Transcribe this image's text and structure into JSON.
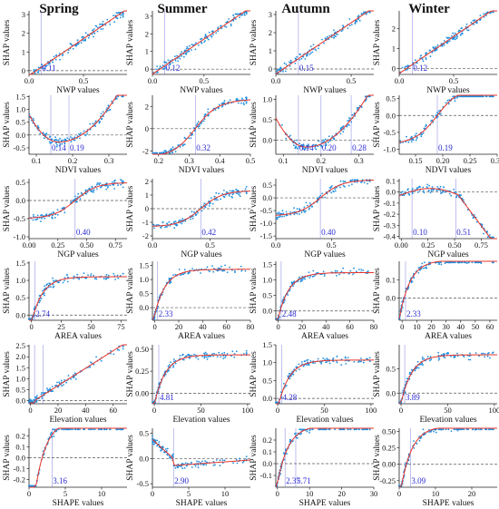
{
  "seasons": [
    "Spring",
    "Summer",
    "Autumn",
    "Winter"
  ],
  "colors": {
    "points": "#1f8fe0",
    "fit_line": "#e8332a",
    "threshold": "#4a4ad6",
    "zero_line": "#555555",
    "threshold_label": "#2a2ad0"
  },
  "chart_data": [
    {
      "type": "scatter",
      "panel": "Spring NWP",
      "xlabel": "NWP values",
      "ylabel": "SHAP values",
      "xlim": [
        0,
        0.9
      ],
      "ylim": [
        -0.2,
        3.2
      ],
      "xticks": [
        "0.0",
        "0.5"
      ],
      "yticks": [
        "0",
        "1",
        "2",
        "3"
      ],
      "thresholds": [
        0.11
      ],
      "threshold_labels": [
        "0.11"
      ],
      "trend": "linear"
    },
    {
      "type": "scatter",
      "panel": "Summer NWP",
      "xlabel": "NWP values",
      "ylabel": "SHAP values",
      "xlim": [
        0,
        0.95
      ],
      "ylim": [
        -0.3,
        3.3
      ],
      "xticks": [
        "0.0",
        "0.5"
      ],
      "yticks": [
        "0",
        "1",
        "2",
        "3"
      ],
      "thresholds": [
        0.12
      ],
      "threshold_labels": [
        "0.12"
      ],
      "trend": "linear"
    },
    {
      "type": "scatter",
      "panel": "Autumn NWP",
      "xlabel": "NWP values",
      "ylabel": "SHAP values",
      "xlim": [
        0,
        0.65
      ],
      "ylim": [
        -0.3,
        3.2
      ],
      "xticks": [
        "0.0",
        "0.5"
      ],
      "yticks": [
        "0",
        "1",
        "2",
        "3"
      ],
      "thresholds": [
        0.15
      ],
      "threshold_labels": [
        "0.15"
      ],
      "trend": "linear"
    },
    {
      "type": "scatter",
      "panel": "Winter NWP",
      "xlabel": "NWP values",
      "ylabel": "SHAP values",
      "xlim": [
        0,
        0.9
      ],
      "ylim": [
        -0.3,
        2.9
      ],
      "xticks": [
        "0.0",
        "0.5"
      ],
      "yticks": [
        "0",
        "1",
        "2"
      ],
      "thresholds": [
        0.12
      ],
      "threshold_labels": [
        "0.12"
      ],
      "trend": "linear"
    },
    {
      "type": "scatter",
      "panel": "Spring NDVI",
      "xlabel": "NDVI values",
      "ylabel": "SHAP values",
      "xlim": [
        0.08,
        0.35
      ],
      "ylim": [
        -0.75,
        1.55
      ],
      "xticks": [
        "0.1",
        "0.2",
        "0.3"
      ],
      "yticks": [
        "-0.5",
        "0.0",
        "0.5",
        "1.0",
        "1.5"
      ],
      "thresholds": [
        0.14,
        0.19
      ],
      "threshold_labels": [
        "0.14",
        "0.19"
      ],
      "trend": "u-shape"
    },
    {
      "type": "scatter",
      "panel": "Summer NDVI",
      "xlabel": "NDVI values",
      "ylabel": "SHAP values",
      "xlim": [
        0.18,
        0.5
      ],
      "ylim": [
        -2.3,
        3.0
      ],
      "xticks": [
        "0.2",
        "0.3",
        "0.4",
        "0.5"
      ],
      "yticks": [
        "-2",
        "0",
        "2"
      ],
      "thresholds": [
        0.32
      ],
      "threshold_labels": [
        "0.32"
      ],
      "trend": "s-curve"
    },
    {
      "type": "scatter",
      "panel": "Autumn NDVI",
      "xlabel": "NDVI values",
      "ylabel": "SHAP values",
      "xlim": [
        0.08,
        0.34
      ],
      "ylim": [
        -0.35,
        1.1
      ],
      "xticks": [
        "0.1",
        "0.2",
        "0.3"
      ],
      "yticks": [
        "0.0",
        "0.5",
        "1.0"
      ],
      "thresholds": [
        0.14,
        0.2,
        0.28
      ],
      "threshold_labels": [
        "0.14",
        "0.20",
        "0.28"
      ],
      "trend": "u-shape"
    },
    {
      "type": "scatter",
      "panel": "Winter NDVI",
      "xlabel": "NDVI values",
      "ylabel": "SHAP values",
      "xlim": [
        0.12,
        0.3
      ],
      "ylim": [
        -1.15,
        0.6
      ],
      "xticks": [
        "0.15",
        "0.20",
        "0.25",
        "0.30"
      ],
      "yticks": [
        "-1.0",
        "-0.5",
        "0.0",
        "0.5"
      ],
      "thresholds": [
        0.19
      ],
      "threshold_labels": [
        "0.19"
      ],
      "trend": "s-curve"
    },
    {
      "type": "scatter",
      "panel": "Spring NGP",
      "xlabel": "NGP values",
      "ylabel": "SHAP values",
      "xlim": [
        0,
        0.85
      ],
      "ylim": [
        -1.05,
        0.6
      ],
      "xticks": [
        "0.00",
        "0.25",
        "0.50",
        "0.75"
      ],
      "yticks": [
        "-1.0",
        "-0.5",
        "0.0",
        "0.5"
      ],
      "thresholds": [
        0.4
      ],
      "threshold_labels": [
        "0.40"
      ],
      "trend": "sigmoid"
    },
    {
      "type": "scatter",
      "panel": "Summer NGP",
      "xlabel": "NGP values",
      "ylabel": "SHAP values",
      "xlim": [
        0,
        0.85
      ],
      "ylim": [
        -2.2,
        2.2
      ],
      "xticks": [
        "0.0",
        "0.5"
      ],
      "yticks": [
        "-2",
        "-1",
        "0",
        "1",
        "2"
      ],
      "thresholds": [
        0.42
      ],
      "threshold_labels": [
        "0.42"
      ],
      "trend": "sigmoid"
    },
    {
      "type": "scatter",
      "panel": "Autumn NGP",
      "xlabel": "NGP values",
      "ylabel": "SHAP values",
      "xlim": [
        0,
        0.88
      ],
      "ylim": [
        -1.6,
        0.75
      ],
      "xticks": [
        "0.0",
        "0.5"
      ],
      "yticks": [
        "-1.5",
        "-1.0",
        "-0.5",
        "0.0",
        "0.5"
      ],
      "thresholds": [
        0.4
      ],
      "threshold_labels": [
        "0.40"
      ],
      "trend": "sigmoid"
    },
    {
      "type": "scatter",
      "panel": "Winter NGP",
      "xlabel": "NGP values",
      "ylabel": "SHAP values",
      "xlim": [
        -0.02,
        0.9
      ],
      "ylim": [
        -0.42,
        0.12
      ],
      "xticks": [
        "0.00",
        "0.25",
        "0.50",
        "0.75"
      ],
      "yticks": [
        "-0.4",
        "-0.3",
        "-0.2",
        "-0.1",
        "0.0",
        "0.1"
      ],
      "thresholds": [
        0.1,
        0.51
      ],
      "threshold_labels": [
        "0.10",
        "0.51"
      ],
      "trend": "arch"
    },
    {
      "type": "scatter",
      "panel": "Spring AREA",
      "xlabel": "AREA values",
      "ylabel": "SHAP values",
      "xlim": [
        -2,
        80
      ],
      "ylim": [
        -0.15,
        1.55
      ],
      "xticks": [
        "0",
        "25",
        "50",
        "75"
      ],
      "yticks": [
        "0.0",
        "0.5",
        "1.0",
        "1.5"
      ],
      "thresholds": [
        2.74
      ],
      "threshold_labels": [
        "2.74"
      ],
      "trend": "log"
    },
    {
      "type": "scatter",
      "panel": "Summer AREA",
      "xlabel": "AREA values",
      "ylabel": "SHAP values",
      "xlim": [
        -2,
        80
      ],
      "ylim": [
        -0.45,
        1.65
      ],
      "xticks": [
        "0",
        "20",
        "40",
        "60",
        "80"
      ],
      "yticks": [
        "0.0",
        "0.5",
        "1.0",
        "1.5"
      ],
      "thresholds": [
        2.33
      ],
      "threshold_labels": [
        "2.33"
      ],
      "trend": "log"
    },
    {
      "type": "scatter",
      "panel": "Autumn AREA",
      "xlabel": "AREA values",
      "ylabel": "SHAP values",
      "xlim": [
        -2,
        80
      ],
      "ylim": [
        -0.3,
        1.6
      ],
      "xticks": [
        "0",
        "20",
        "40",
        "60",
        "80"
      ],
      "yticks": [
        "0.0",
        "0.5",
        "1.0",
        "1.5"
      ],
      "thresholds": [
        2.48
      ],
      "threshold_labels": [
        "2.48"
      ],
      "trend": "log"
    },
    {
      "type": "scatter",
      "panel": "Winter AREA",
      "xlabel": "AREA values",
      "ylabel": "SHAP values",
      "xlim": [
        -2,
        65
      ],
      "ylim": [
        -0.12,
        0.2
      ],
      "xticks": [
        "0",
        "10",
        "20",
        "30",
        "40",
        "50",
        "60"
      ],
      "yticks": [
        "0.0",
        "0.1"
      ],
      "thresholds": [
        2.33
      ],
      "threshold_labels": [
        "2.33"
      ],
      "trend": "log"
    },
    {
      "type": "scatter",
      "panel": "Spring Elevation",
      "xlabel": "Elevation values",
      "ylabel": "SHAP values",
      "xlim": [
        -1,
        70
      ],
      "ylim": [
        -0.15,
        2.55
      ],
      "xticks": [
        "0",
        "20",
        "40",
        "60"
      ],
      "yticks": [
        "0.0",
        "0.5",
        "1.0",
        "1.5",
        "2.0",
        "2.5"
      ],
      "thresholds": [
        3.0,
        9.0
      ],
      "threshold_labels": [],
      "trend": "linear-kink"
    },
    {
      "type": "scatter",
      "panel": "Summer Elevation",
      "xlabel": "Elevation values",
      "ylabel": "SHAP values",
      "xlim": [
        -2,
        103
      ],
      "ylim": [
        -0.12,
        0.55
      ],
      "xticks": [
        "0",
        "50",
        "100"
      ],
      "yticks": [
        "0.00",
        "0.25",
        "0.50"
      ],
      "thresholds": [
        4.81
      ],
      "threshold_labels": [
        "4.81"
      ],
      "trend": "log"
    },
    {
      "type": "scatter",
      "panel": "Autumn Elevation",
      "xlabel": "Elevation values",
      "ylabel": "SHAP values",
      "xlim": [
        -2,
        103
      ],
      "ylim": [
        -0.15,
        1.5
      ],
      "xticks": [
        "0",
        "50",
        "100"
      ],
      "yticks": [
        "0.0",
        "0.5",
        "1.0",
        "1.5"
      ],
      "thresholds": [
        4.28
      ],
      "threshold_labels": [
        "4.28"
      ],
      "trend": "log"
    },
    {
      "type": "scatter",
      "panel": "Winter Elevation",
      "xlabel": "Elevation values",
      "ylabel": "SHAP values",
      "xlim": [
        -2,
        103
      ],
      "ylim": [
        -0.22,
        1.0
      ],
      "xticks": [
        "0",
        "50",
        "100"
      ],
      "yticks": [
        "0.0",
        "0.5"
      ],
      "thresholds": [
        3.89
      ],
      "threshold_labels": [
        "3.89"
      ],
      "trend": "log"
    },
    {
      "type": "scatter",
      "panel": "Spring SHAPE",
      "xlabel": "SHAPE values",
      "ylabel": "SHAP values",
      "xlim": [
        0,
        13.5
      ],
      "ylim": [
        -0.27,
        0.27
      ],
      "xticks": [
        "0",
        "5",
        "10"
      ],
      "yticks": [
        "-0.2",
        "-0.1",
        "0.0",
        "0.1",
        "0.2"
      ],
      "thresholds": [
        3.16
      ],
      "threshold_labels": [
        "3.16"
      ],
      "trend": "log"
    },
    {
      "type": "scatter",
      "panel": "Summer SHAPE",
      "xlabel": "SHAPE values",
      "ylabel": "SHAP values",
      "xlim": [
        0,
        13.5
      ],
      "ylim": [
        -0.57,
        0.6
      ],
      "xticks": [
        "0",
        "5",
        "10"
      ],
      "yticks": [
        "-0.5",
        "0.0",
        "0.5"
      ],
      "thresholds": [
        2.9
      ],
      "threshold_labels": [
        "2.90"
      ],
      "trend": "dip"
    },
    {
      "type": "scatter",
      "panel": "Autumn SHAPE",
      "xlabel": "SHAPE values",
      "ylabel": "SHAP values",
      "xlim": [
        -0.5,
        30
      ],
      "ylim": [
        -0.2,
        0.3
      ],
      "xticks": [
        "0",
        "10",
        "20",
        "30"
      ],
      "yticks": [
        "-0.1",
        "0.0",
        "0.1",
        "0.2"
      ],
      "thresholds": [
        2.37,
        5.71
      ],
      "threshold_labels": [
        "2.37",
        "5.71"
      ],
      "trend": "log"
    },
    {
      "type": "scatter",
      "panel": "Winter SHAPE",
      "xlabel": "SHAPE values",
      "ylabel": "SHAP values",
      "xlim": [
        0,
        27
      ],
      "ylim": [
        -0.35,
        0.55
      ],
      "xticks": [
        "0",
        "10",
        "20"
      ],
      "yticks": [
        "-0.25",
        "0.00",
        "0.25",
        "0.50"
      ],
      "thresholds": [
        3.09
      ],
      "threshold_labels": [
        "3.09"
      ],
      "trend": "log"
    }
  ]
}
